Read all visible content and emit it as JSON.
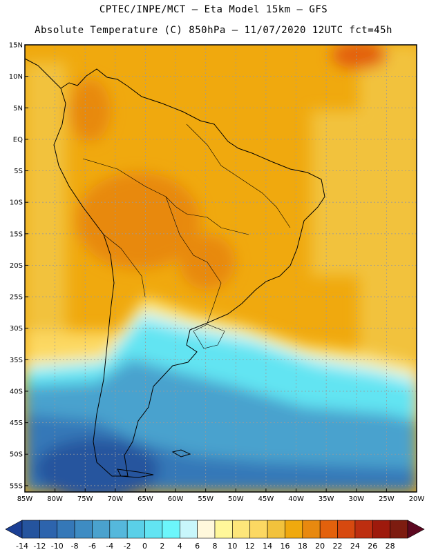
{
  "header": {
    "line1": "CPTEC/INPE/MCT –  Eta Model 15km – GFS",
    "line2": "Absolute Temperature (C) 850hPa – 11/07/2020 12UTC fct=45h"
  },
  "map": {
    "lat_labels": [
      "15N",
      "10N",
      "5N",
      "EQ",
      "5S",
      "10S",
      "15S",
      "20S",
      "25S",
      "30S",
      "35S",
      "40S",
      "45S",
      "50S",
      "55S"
    ],
    "lon_labels": [
      "85W",
      "80W",
      "75W",
      "70W",
      "65W",
      "60W",
      "55W",
      "50W",
      "45W",
      "40W",
      "35W",
      "30W",
      "25W",
      "20W"
    ],
    "lat_range": [
      15,
      -56
    ],
    "lon_range": [
      -85,
      -20
    ],
    "temp_zones": {
      "band_22": 22,
      "band_20": 20,
      "band_18": 18,
      "band_16": 16,
      "band_14": 14,
      "band_12": 12,
      "band_8": 8,
      "band_4": 4,
      "band_2": 2,
      "band_0": 0,
      "band_m2": -2,
      "band_m4": -4,
      "band_m6": -6,
      "band_m8": -8,
      "band_m10": -10,
      "band_m12": -12
    }
  },
  "colorbar": {
    "labels": [
      "-14",
      "-12",
      "-10",
      "-8",
      "-6",
      "-4",
      "-2",
      "0",
      "2",
      "4",
      "6",
      "8",
      "10",
      "12",
      "14",
      "16",
      "18",
      "20",
      "22",
      "24",
      "26",
      "28"
    ],
    "colors": [
      "#1b3f94",
      "#25549e",
      "#2d64ad",
      "#3578b8",
      "#3e8cc3",
      "#4aa2ce",
      "#55b8dc",
      "#5ad0e8",
      "#62e4f2",
      "#6cf6fb",
      "#c8f6fb",
      "#fff8dc",
      "#fff79a",
      "#fde67a",
      "#fcd862",
      "#f2c23c",
      "#f0a90e",
      "#e8890f",
      "#e3610c",
      "#d7490f",
      "#bd2e10",
      "#9e1a0c",
      "#7d1c10",
      "#5c0820"
    ]
  }
}
